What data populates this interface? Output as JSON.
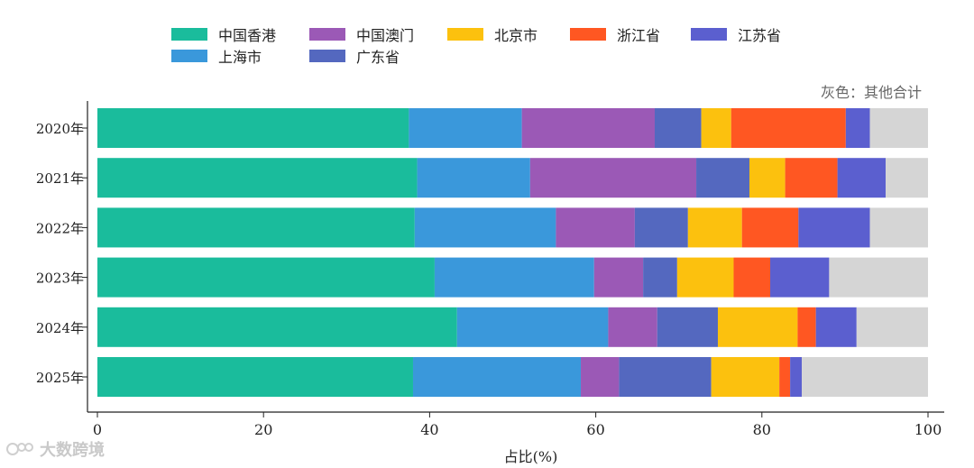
{
  "chart_data": {
    "type": "bar",
    "orientation": "horizontal",
    "stacked": true,
    "categories": [
      "2020年",
      "2021年",
      "2022年",
      "2023年",
      "2024年",
      "2025年"
    ],
    "series": [
      {
        "name": "中国香港",
        "color": "#1ABC9C",
        "values": [
          37.5,
          38.5,
          38.2,
          40.6,
          43.3,
          38.0
        ]
      },
      {
        "name": "上海市",
        "color": "#3A98DB",
        "values": [
          13.6,
          13.6,
          17.0,
          19.2,
          18.2,
          20.2
        ]
      },
      {
        "name": "中国澳门",
        "color": "#9B59B6",
        "values": [
          16.0,
          20.0,
          9.5,
          5.9,
          5.9,
          4.6
        ]
      },
      {
        "name": "广东省",
        "color": "#5468BF",
        "values": [
          5.6,
          6.4,
          6.4,
          4.1,
          7.3,
          11.1
        ]
      },
      {
        "name": "北京市",
        "color": "#FCC10E",
        "values": [
          3.6,
          4.3,
          6.5,
          6.8,
          9.6,
          8.2
        ]
      },
      {
        "name": "浙江省",
        "color": "#FF5722",
        "values": [
          13.8,
          6.3,
          6.8,
          4.4,
          2.2,
          1.3
        ]
      },
      {
        "name": "江苏省",
        "color": "#5B5FCF",
        "values": [
          2.9,
          5.8,
          8.6,
          7.1,
          4.9,
          1.4
        ]
      },
      {
        "name": "",
        "color": "#D5D5D5",
        "values": [
          7.0,
          5.1,
          7.0,
          11.9,
          8.6,
          15.2
        ]
      }
    ],
    "xlabel": "占比(%)",
    "xlim": [
      0,
      100
    ],
    "xticks": [
      0,
      20,
      40,
      60,
      80,
      100
    ],
    "note": "灰色：其他合计",
    "legend_position": "top"
  },
  "legend_items": [
    {
      "name": "中国香港",
      "color": "#1ABC9C"
    },
    {
      "name": "中国澳门",
      "color": "#9B59B6"
    },
    {
      "name": "北京市",
      "color": "#FCC10E"
    },
    {
      "name": "浙江省",
      "color": "#FF5722"
    },
    {
      "name": "江苏省",
      "color": "#5B5FCF"
    },
    {
      "name": "上海市",
      "color": "#3A98DB"
    },
    {
      "name": "广东省",
      "color": "#5468BF"
    }
  ],
  "watermark": "大数跨境"
}
